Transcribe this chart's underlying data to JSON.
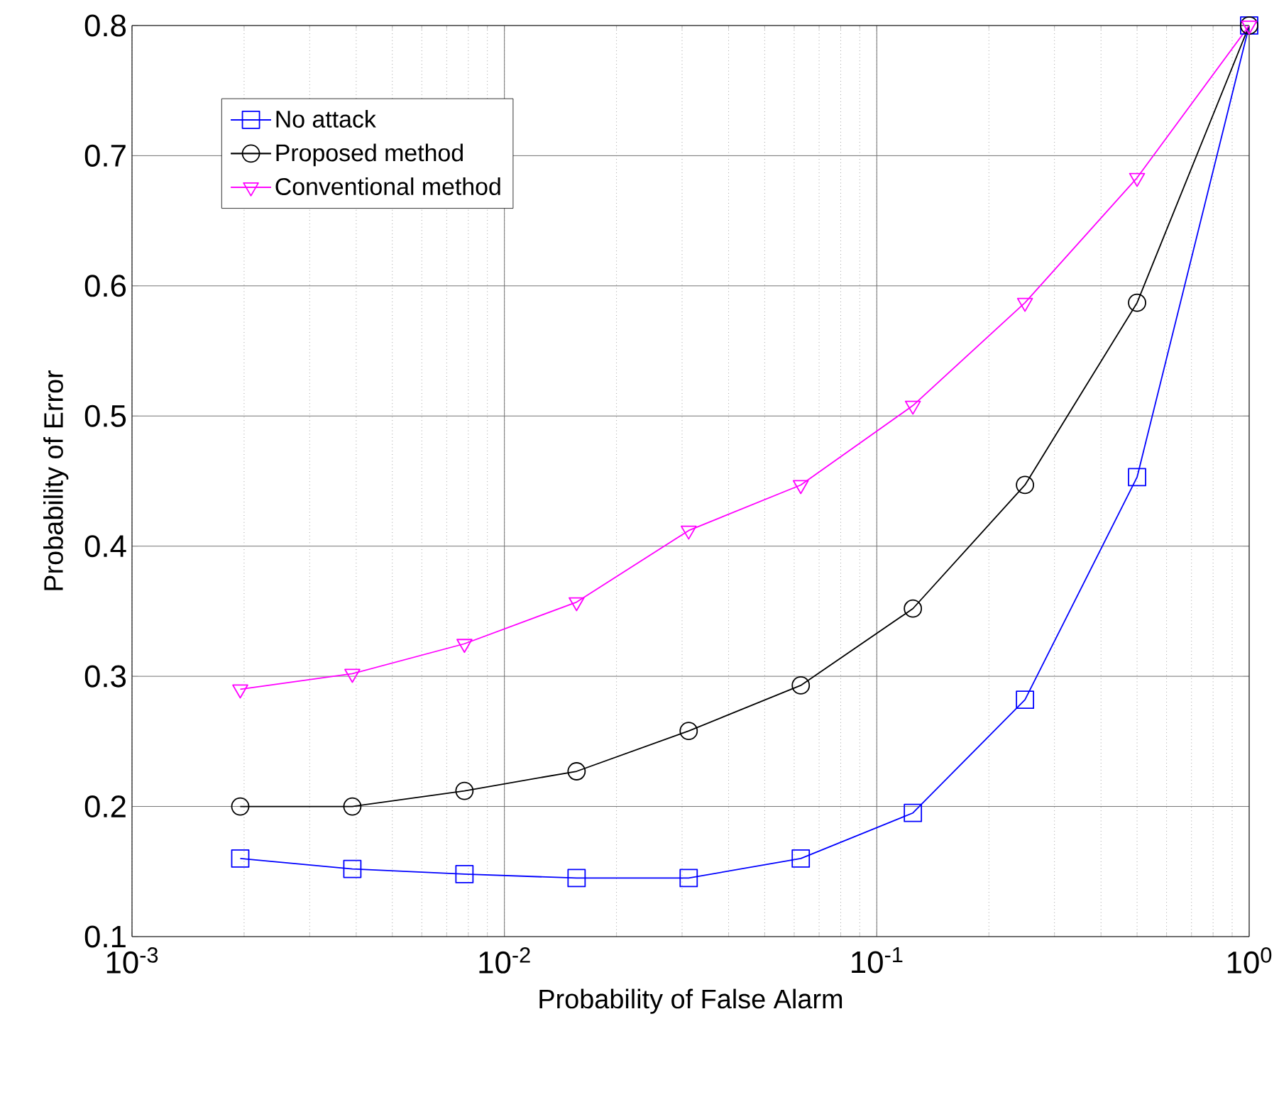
{
  "chart_data": {
    "type": "line",
    "xlabel": "Probability of False Alarm",
    "ylabel": "Probability of Error",
    "x": [
      0.001953125,
      0.00390625,
      0.0078125,
      0.015625,
      0.03125,
      0.0625,
      0.125,
      0.25,
      0.5,
      1
    ],
    "series": [
      {
        "name": "No attack",
        "color": "#0000ff",
        "marker": "square",
        "values": [
          0.16,
          0.152,
          0.148,
          0.145,
          0.145,
          0.16,
          0.195,
          0.282,
          0.453,
          0.8
        ]
      },
      {
        "name": "Proposed method",
        "color": "#000000",
        "marker": "circle",
        "values": [
          0.2,
          0.2,
          0.212,
          0.227,
          0.258,
          0.293,
          0.352,
          0.447,
          0.587,
          0.8
        ]
      },
      {
        "name": "Conventional method",
        "color": "#ff00ff",
        "marker": "triangle",
        "values": [
          0.29,
          0.302,
          0.325,
          0.357,
          0.412,
          0.447,
          0.508,
          0.587,
          0.683,
          0.8
        ]
      }
    ],
    "log": "x",
    "xlim": [
      0.001,
      1
    ],
    "ylim": [
      0.1,
      0.8
    ],
    "xticks": [
      {
        "value": 0.001,
        "label": "10$^{-3}$"
      },
      {
        "value": 0.01,
        "label": "10$^{-2}$"
      },
      {
        "value": 0.1,
        "label": "10$^{-1}$"
      },
      {
        "value": 1,
        "label": "10$^{0}$"
      }
    ],
    "yticks": [
      0.1,
      0.2,
      0.3,
      0.4,
      0.5,
      0.6,
      0.7,
      0.8
    ],
    "grid": true,
    "legend": "top left",
    "line_style": "solid"
  }
}
